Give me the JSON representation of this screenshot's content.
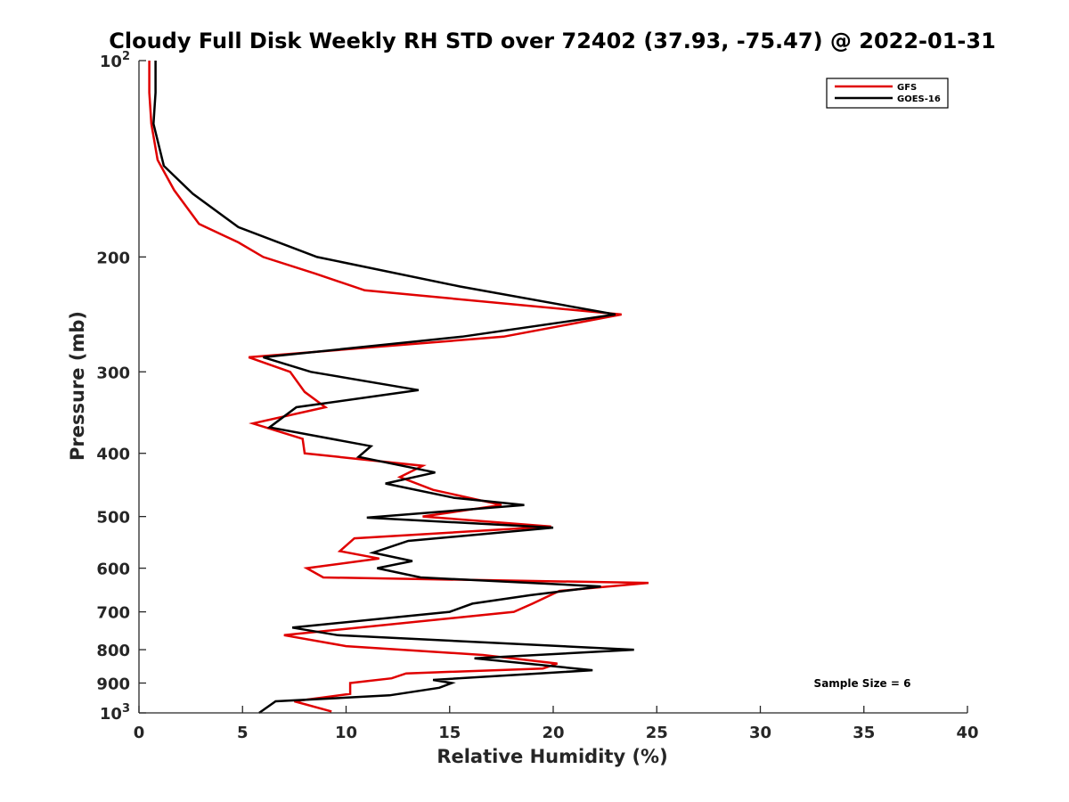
{
  "chart_data": {
    "type": "line",
    "title": "Cloudy Full Disk Weekly RH STD over 72402 (37.93, -75.47) @ 2022-01-31",
    "xlabel": "Relative Humidity (%)",
    "ylabel": "Pressure (mb)",
    "xlim": [
      0,
      40
    ],
    "ylim": [
      100,
      1000
    ],
    "yscale": "log",
    "y_reversed": true,
    "grid": false,
    "legend_position": "top-right",
    "x_ticks": [
      "0",
      "5",
      "10",
      "15",
      "20",
      "25",
      "30",
      "35",
      "40"
    ],
    "y_ticks": [
      {
        "value": 100,
        "base": "10",
        "exp": "2"
      },
      {
        "value": 200,
        "label": "200"
      },
      {
        "value": 300,
        "label": "300"
      },
      {
        "value": 400,
        "label": "400"
      },
      {
        "value": 500,
        "label": "500"
      },
      {
        "value": 600,
        "label": "600"
      },
      {
        "value": 700,
        "label": "700"
      },
      {
        "value": 800,
        "label": "800"
      },
      {
        "value": 900,
        "label": "900"
      },
      {
        "value": 1000,
        "base": "10",
        "exp": "3"
      }
    ],
    "annotation": "Sample Size = 6",
    "series": [
      {
        "name": "GFS",
        "color": "#e00000",
        "points": [
          [
            0.5,
            100
          ],
          [
            0.5,
            112
          ],
          [
            0.6,
            125
          ],
          [
            0.9,
            142
          ],
          [
            1.7,
            158
          ],
          [
            2.9,
            178
          ],
          [
            4.8,
            190
          ],
          [
            6.0,
            200
          ],
          [
            8.5,
            212
          ],
          [
            10.9,
            225
          ],
          [
            23.3,
            245
          ],
          [
            17.6,
            265
          ],
          [
            5.3,
            285
          ],
          [
            7.3,
            300
          ],
          [
            8.0,
            322
          ],
          [
            9.0,
            340
          ],
          [
            5.5,
            360
          ],
          [
            7.9,
            380
          ],
          [
            8.0,
            400
          ],
          [
            13.7,
            418
          ],
          [
            12.6,
            435
          ],
          [
            14.2,
            455
          ],
          [
            17.5,
            480
          ],
          [
            13.7,
            500
          ],
          [
            19.9,
            518
          ],
          [
            10.4,
            540
          ],
          [
            9.7,
            565
          ],
          [
            11.6,
            580
          ],
          [
            8.1,
            600
          ],
          [
            8.9,
            620
          ],
          [
            24.6,
            632
          ],
          [
            20.3,
            650
          ],
          [
            19.0,
            680
          ],
          [
            18.1,
            700
          ],
          [
            7.0,
            760
          ],
          [
            10.0,
            790
          ],
          [
            16.6,
            815
          ],
          [
            20.2,
            840
          ],
          [
            19.5,
            855
          ],
          [
            12.9,
            870
          ],
          [
            12.2,
            885
          ],
          [
            10.2,
            900
          ],
          [
            10.2,
            935
          ],
          [
            7.5,
            960
          ],
          [
            9.3,
            995
          ]
        ]
      },
      {
        "name": "GOES-16",
        "color": "#000000",
        "points": [
          [
            0.8,
            100
          ],
          [
            0.8,
            112
          ],
          [
            0.7,
            125
          ],
          [
            1.2,
            145
          ],
          [
            2.6,
            160
          ],
          [
            4.8,
            180
          ],
          [
            8.6,
            200
          ],
          [
            15.5,
            222
          ],
          [
            23.0,
            245
          ],
          [
            15.6,
            265
          ],
          [
            6.0,
            285
          ],
          [
            8.3,
            300
          ],
          [
            13.5,
            320
          ],
          [
            7.6,
            340
          ],
          [
            6.3,
            365
          ],
          [
            11.2,
            390
          ],
          [
            10.6,
            405
          ],
          [
            14.3,
            428
          ],
          [
            11.9,
            445
          ],
          [
            15.2,
            468
          ],
          [
            18.6,
            480
          ],
          [
            11.0,
            502
          ],
          [
            20.0,
            520
          ],
          [
            13.0,
            545
          ],
          [
            11.3,
            568
          ],
          [
            13.2,
            585
          ],
          [
            11.5,
            600
          ],
          [
            13.6,
            620
          ],
          [
            22.3,
            640
          ],
          [
            18.9,
            660
          ],
          [
            16.1,
            680
          ],
          [
            15.0,
            700
          ],
          [
            7.4,
            740
          ],
          [
            9.6,
            760
          ],
          [
            23.9,
            800
          ],
          [
            16.2,
            825
          ],
          [
            21.9,
            860
          ],
          [
            14.2,
            890
          ],
          [
            15.1,
            900
          ],
          [
            14.5,
            915
          ],
          [
            12.1,
            940
          ],
          [
            6.6,
            960
          ],
          [
            5.8,
            1000
          ]
        ]
      }
    ]
  }
}
